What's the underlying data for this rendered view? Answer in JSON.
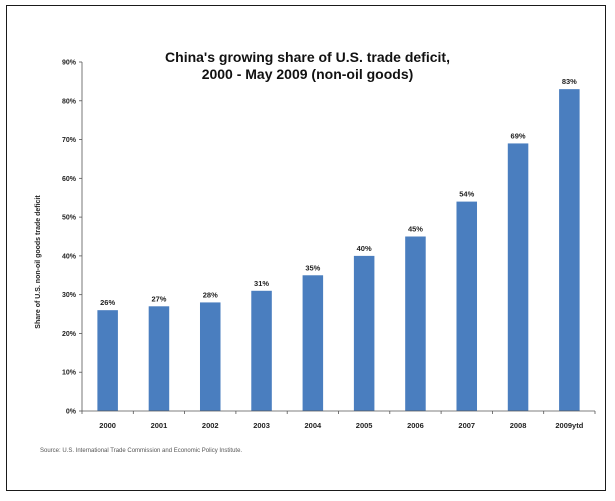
{
  "chart_data": {
    "type": "bar",
    "title_line1": "China's  growing share of U.S. trade deficit,",
    "title_line2": "2000 - May 2009 (non-oil goods)",
    "xlabel": "",
    "ylabel": "Share of U.S. non-oil goods trade deficit",
    "categories": [
      "2000",
      "2001",
      "2002",
      "2003",
      "2004",
      "2005",
      "2006",
      "2007",
      "2008",
      "2009ytd"
    ],
    "values": [
      26,
      27,
      28,
      31,
      35,
      40,
      45,
      54,
      69,
      83
    ],
    "value_labels": [
      "26%",
      "27%",
      "28%",
      "31%",
      "35%",
      "40%",
      "45%",
      "54%",
      "69%",
      "83%"
    ],
    "ylim": [
      0,
      90
    ],
    "yticks": [
      "0%",
      "10%",
      "20%",
      "30%",
      "40%",
      "50%",
      "60%",
      "70%",
      "80%",
      "90%"
    ],
    "grid": false,
    "bar_color": "#4a7ebf"
  },
  "source_note": "Source:  U.S. International Trade Commission and Economic Policy Institute."
}
